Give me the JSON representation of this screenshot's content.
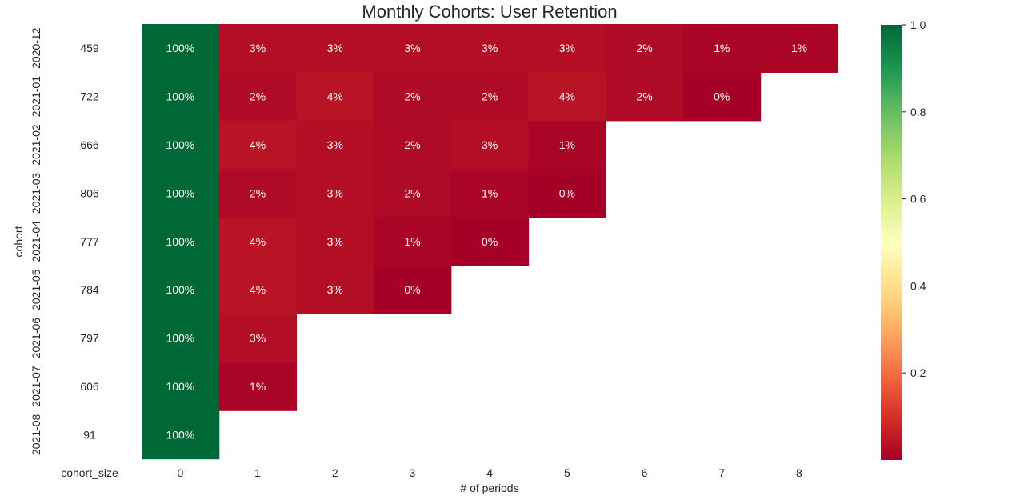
{
  "chart_data": [
    {
      "type": "heatmap",
      "title": "Monthly Cohorts: User Retention",
      "xlabel": "# of periods",
      "ylabel": "cohort",
      "x": [
        0,
        1,
        2,
        3,
        4,
        5,
        6,
        7,
        8
      ],
      "y": [
        "2020-12",
        "2021-01",
        "2021-02",
        "2021-03",
        "2021-04",
        "2021-05",
        "2021-06",
        "2021-07",
        "2021-08"
      ],
      "values": [
        [
          1.0,
          0.03,
          0.03,
          0.03,
          0.03,
          0.03,
          0.02,
          0.01,
          0.01
        ],
        [
          1.0,
          0.02,
          0.04,
          0.02,
          0.02,
          0.04,
          0.02,
          0.0,
          null
        ],
        [
          1.0,
          0.04,
          0.03,
          0.02,
          0.03,
          0.01,
          null,
          null,
          null
        ],
        [
          1.0,
          0.02,
          0.03,
          0.02,
          0.01,
          0.0,
          null,
          null,
          null
        ],
        [
          1.0,
          0.04,
          0.03,
          0.01,
          0.0,
          null,
          null,
          null,
          null
        ],
        [
          1.0,
          0.04,
          0.03,
          0.0,
          null,
          null,
          null,
          null,
          null
        ],
        [
          1.0,
          0.03,
          null,
          null,
          null,
          null,
          null,
          null,
          null
        ],
        [
          1.0,
          0.01,
          null,
          null,
          null,
          null,
          null,
          null,
          null
        ],
        [
          1.0,
          null,
          null,
          null,
          null,
          null,
          null,
          null,
          null
        ]
      ],
      "cell_labels": [
        [
          "100%",
          "3%",
          "3%",
          "3%",
          "3%",
          "3%",
          "2%",
          "1%",
          "1%"
        ],
        [
          "100%",
          "2%",
          "4%",
          "2%",
          "2%",
          "4%",
          "2%",
          "0%",
          ""
        ],
        [
          "100%",
          "4%",
          "3%",
          "2%",
          "3%",
          "1%",
          "",
          "",
          ""
        ],
        [
          "100%",
          "2%",
          "3%",
          "2%",
          "1%",
          "0%",
          "",
          "",
          ""
        ],
        [
          "100%",
          "4%",
          "3%",
          "1%",
          "0%",
          "",
          "",
          "",
          ""
        ],
        [
          "100%",
          "4%",
          "3%",
          "0%",
          "",
          "",
          "",
          "",
          ""
        ],
        [
          "100%",
          "3%",
          "",
          "",
          "",
          "",
          "",
          "",
          ""
        ],
        [
          "100%",
          "1%",
          "",
          "",
          "",
          "",
          "",
          "",
          ""
        ],
        [
          "100%",
          "",
          "",
          "",
          "",
          "",
          "",
          "",
          ""
        ]
      ],
      "colormap": "RdYlGn",
      "colormap_stops": [
        "#a50026",
        "#d73027",
        "#f46d43",
        "#fdae61",
        "#fee08b",
        "#ffffbf",
        "#d9ef8b",
        "#a6d96a",
        "#66bd63",
        "#1a9850",
        "#006837"
      ],
      "vmin": 0.0,
      "vmax": 1.0,
      "colorbar_ticks": [
        "1.0",
        "0.8",
        "0.6",
        "0.4",
        "0.2"
      ],
      "colorbar_tick_values": [
        1.0,
        0.8,
        0.6,
        0.4,
        0.2
      ],
      "grid": false
    },
    {
      "type": "table",
      "xlabel": "cohort_size",
      "values": [
        459,
        722,
        666,
        806,
        777,
        784,
        797,
        606,
        91
      ]
    }
  ]
}
